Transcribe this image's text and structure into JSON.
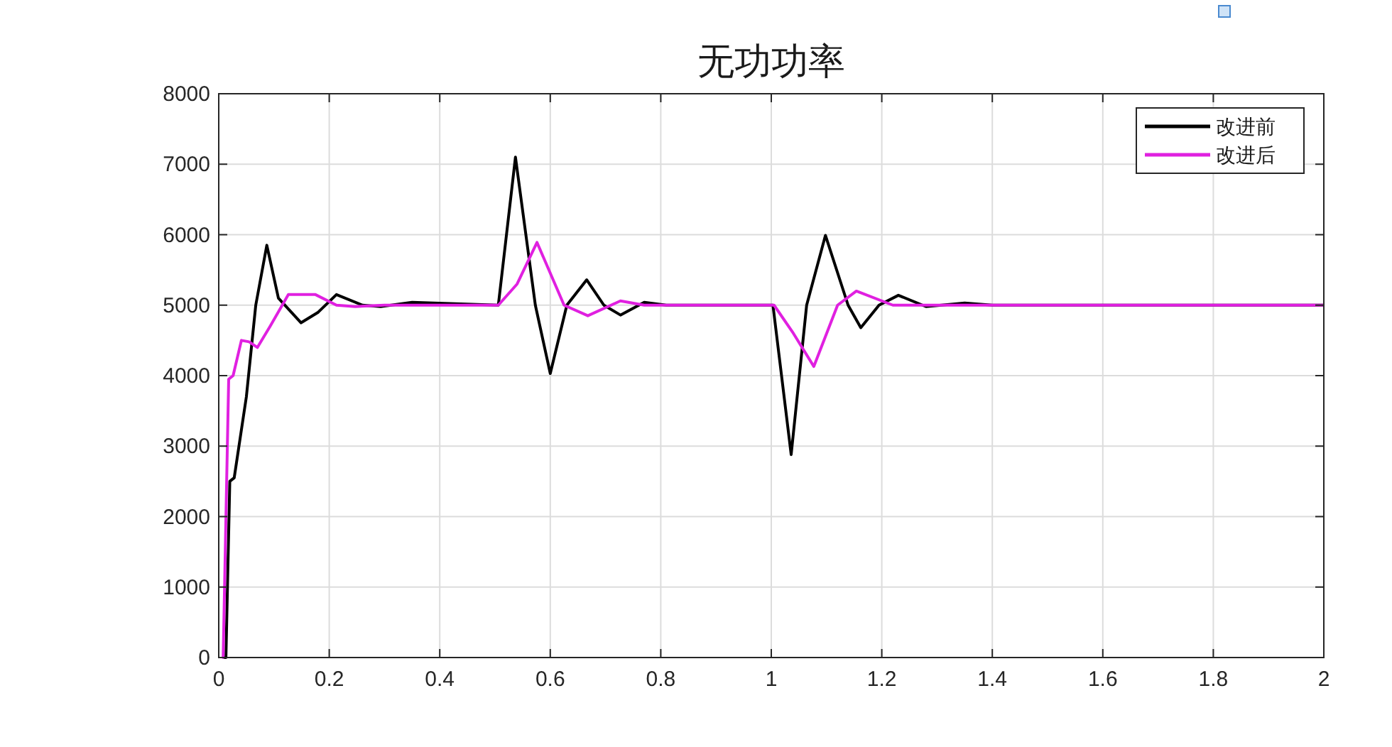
{
  "chart_data": {
    "type": "line",
    "title": "无功功率",
    "xlim": [
      0,
      2
    ],
    "xticks": [
      0,
      0.2,
      0.4,
      0.6,
      0.8,
      1,
      1.2,
      1.4,
      1.6,
      1.8,
      2
    ],
    "ylim": [
      0,
      8000
    ],
    "yticks": [
      0,
      1000,
      2000,
      3000,
      4000,
      5000,
      6000,
      7000,
      8000
    ],
    "grid": true,
    "legend": "top right",
    "line_style": "solid",
    "series": [
      {
        "name": "改进前",
        "color": "#000000",
        "x": [
          0.01,
          0.013,
          0.02,
          0.028,
          0.05,
          0.067,
          0.087,
          0.108,
          0.149,
          0.18,
          0.213,
          0.26,
          0.293,
          0.35,
          0.506,
          0.537,
          0.573,
          0.6,
          0.63,
          0.666,
          0.697,
          0.727,
          0.77,
          0.81,
          1.003,
          1.036,
          1.064,
          1.098,
          1.139,
          1.162,
          1.195,
          1.23,
          1.28,
          1.35,
          1.4,
          2
        ],
        "values": [
          0,
          0,
          2500,
          2550,
          3700,
          5000,
          5850,
          5100,
          4750,
          4900,
          5150,
          5000,
          4980,
          5040,
          5000,
          7100,
          5000,
          4030,
          5000,
          5360,
          5000,
          4860,
          5040,
          5000,
          5000,
          2880,
          5000,
          5990,
          5000,
          4680,
          5000,
          5140,
          4980,
          5030,
          5000,
          5000
        ]
      },
      {
        "name": "改进后",
        "color": "#e020e0",
        "x": [
          0.008,
          0.018,
          0.026,
          0.041,
          0.055,
          0.07,
          0.093,
          0.126,
          0.175,
          0.213,
          0.247,
          0.3,
          0.506,
          0.54,
          0.576,
          0.625,
          0.668,
          0.727,
          0.77,
          1.005,
          1.04,
          1.077,
          1.12,
          1.154,
          1.22,
          2
        ],
        "values": [
          0,
          3950,
          4000,
          4500,
          4480,
          4400,
          4700,
          5150,
          5150,
          5000,
          4980,
          5000,
          5000,
          5300,
          5890,
          5000,
          4850,
          5060,
          5000,
          5000,
          4600,
          4130,
          5000,
          5200,
          5000,
          5000
        ]
      }
    ]
  }
}
